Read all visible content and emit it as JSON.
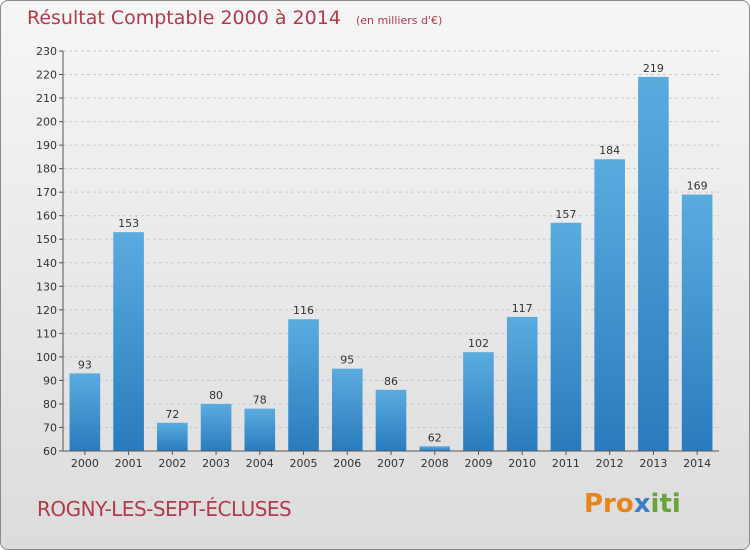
{
  "title": "Résultat Comptable 2000 à 2014",
  "subtitle": "(en milliers d'€)",
  "commune": "ROGNY-LES-SEPT-ÉCLUSES",
  "logo_text": "Proxiti",
  "colors": {
    "bar_top": "#5aacdf",
    "bar_bottom": "#2a7bbd",
    "title": "#b33a4a"
  },
  "chart_data": {
    "type": "bar",
    "title": "Résultat Comptable 2000 à 2014",
    "subtitle": "(en milliers d'€)",
    "categories": [
      "2000",
      "2001",
      "2002",
      "2003",
      "2004",
      "2005",
      "2006",
      "2007",
      "2008",
      "2009",
      "2010",
      "2011",
      "2012",
      "2013",
      "2014"
    ],
    "values": [
      93,
      153,
      72,
      80,
      78,
      116,
      95,
      86,
      62,
      102,
      117,
      157,
      184,
      219,
      169
    ],
    "ylim": [
      60,
      230
    ],
    "yticks": [
      60,
      70,
      80,
      90,
      100,
      110,
      120,
      130,
      140,
      150,
      160,
      170,
      180,
      190,
      200,
      210,
      220,
      230
    ],
    "grid": true
  }
}
